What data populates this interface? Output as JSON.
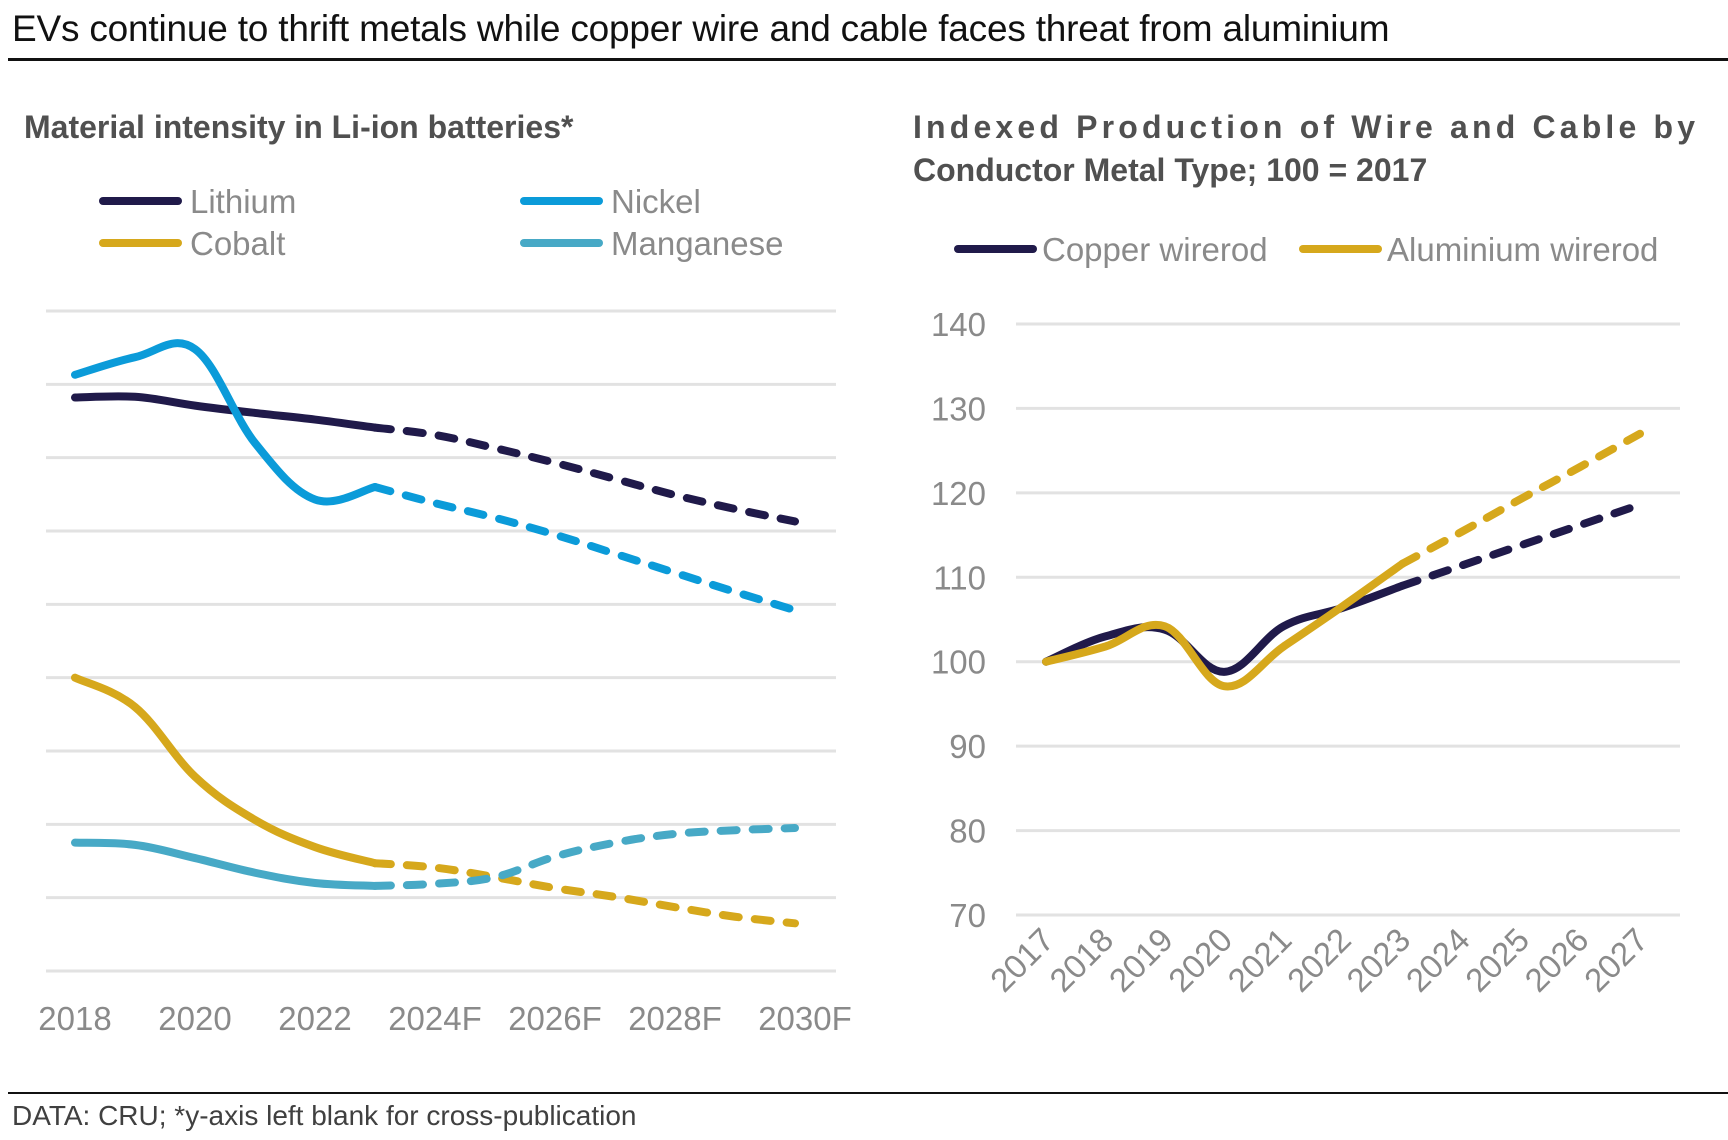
{
  "header": {
    "title": "EVs continue to thrift metals while copper wire and cable faces threat from aluminium"
  },
  "footer": {
    "source": "DATA: CRU; *y-axis left blank for cross-publication"
  },
  "chart_data": [
    {
      "id": "left",
      "type": "line",
      "title": "Material intensity in Li-ion batteries*",
      "xlabel": "",
      "ylabel": "",
      "y_axis_labels_shown": false,
      "ylim": [
        0,
        9
      ],
      "grid": true,
      "gridline_count": 10,
      "legend_position": "top",
      "x": [
        "2018",
        "2019",
        "2020",
        "2021",
        "2022",
        "2023",
        "2024F",
        "2025F",
        "2026F",
        "2027F",
        "2028F",
        "2029F",
        "2030F"
      ],
      "x_tick_labels": [
        "2018",
        "2020",
        "2022",
        "2024F",
        "2026F",
        "2028F",
        "2030F"
      ],
      "forecast_start_index": 5,
      "series": [
        {
          "name": "Lithium",
          "color": "#201a4a",
          "values": [
            7.82,
            7.83,
            7.71,
            7.61,
            7.52,
            7.41,
            7.31,
            7.13,
            6.93,
            6.71,
            6.49,
            6.3,
            6.13
          ]
        },
        {
          "name": "Nickel",
          "color": "#0b9bd9",
          "values": [
            8.13,
            8.37,
            8.48,
            7.2,
            6.43,
            6.6,
            6.38,
            6.18,
            5.95,
            5.69,
            5.43,
            5.17,
            4.92
          ]
        },
        {
          "name": "Cobalt",
          "color": "#d6a81c",
          "values": [
            4.0,
            3.6,
            2.65,
            2.06,
            1.69,
            1.47,
            1.41,
            1.28,
            1.13,
            1.01,
            0.87,
            0.74,
            0.65
          ]
        },
        {
          "name": "Manganese",
          "color": "#47a9c6",
          "values": [
            1.75,
            1.72,
            1.54,
            1.34,
            1.2,
            1.16,
            1.19,
            1.28,
            1.56,
            1.75,
            1.87,
            1.92,
            1.95
          ]
        }
      ]
    },
    {
      "id": "right",
      "type": "line",
      "title": "Indexed Production of Wire and Cable by Conductor Metal Type; 100 = 2017",
      "title_lines": [
        "Indexed Production of Wire and Cable by",
        "Conductor Metal Type; 100 = 2017"
      ],
      "xlabel": "",
      "ylabel": "",
      "ylim": [
        70,
        140
      ],
      "y_ticks": [
        140,
        130,
        120,
        110,
        100,
        90,
        80,
        70
      ],
      "grid": true,
      "legend_position": "top",
      "x": [
        "2017",
        "2018",
        "2019",
        "2020",
        "2021",
        "2022",
        "2023",
        "2024",
        "2025",
        "2026",
        "2027"
      ],
      "forecast_start_index": 6,
      "series": [
        {
          "name": "Copper wirerod",
          "color": "#201a4a",
          "values": [
            100,
            103.0,
            103.8,
            98.8,
            104.2,
            106.4,
            109.0,
            111.4,
            113.8,
            116.2,
            118.6
          ]
        },
        {
          "name": "Aluminium wirerod",
          "color": "#d6a81c",
          "values": [
            100,
            101.8,
            104.2,
            97.1,
            101.8,
            106.6,
            111.6,
            115.4,
            119.3,
            123.1,
            127.0
          ]
        }
      ]
    }
  ]
}
